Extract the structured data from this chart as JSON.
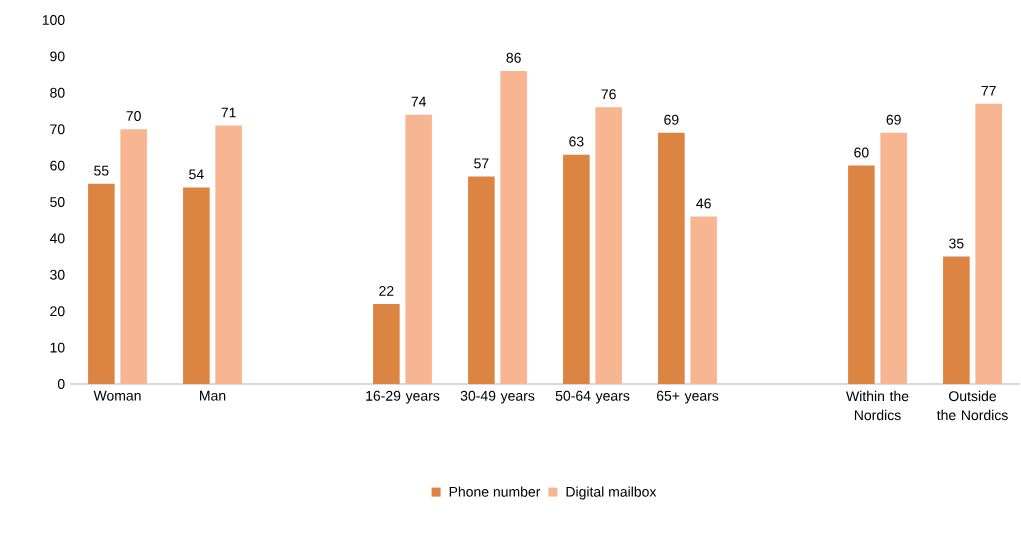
{
  "chart_data": {
    "type": "bar",
    "categories": [
      "Woman",
      "Man",
      null,
      "16-29 years",
      "30-49 years",
      "50-64 years",
      "65+ years",
      null,
      "Within the Nordics",
      "Outside the Nordics"
    ],
    "series": [
      {
        "name": "Phone number",
        "color": "#dc8442",
        "values": [
          55,
          54,
          null,
          22,
          57,
          63,
          69,
          null,
          60,
          35
        ]
      },
      {
        "name": "Digital mailbox",
        "color": "#f8b591",
        "values": [
          70,
          71,
          null,
          74,
          86,
          76,
          46,
          null,
          69,
          77
        ]
      }
    ],
    "ylim": [
      0,
      100
    ],
    "yticks": [
      0,
      10,
      20,
      30,
      40,
      50,
      60,
      70,
      80,
      90,
      100
    ],
    "data_labels": true,
    "legend": "bottom"
  }
}
